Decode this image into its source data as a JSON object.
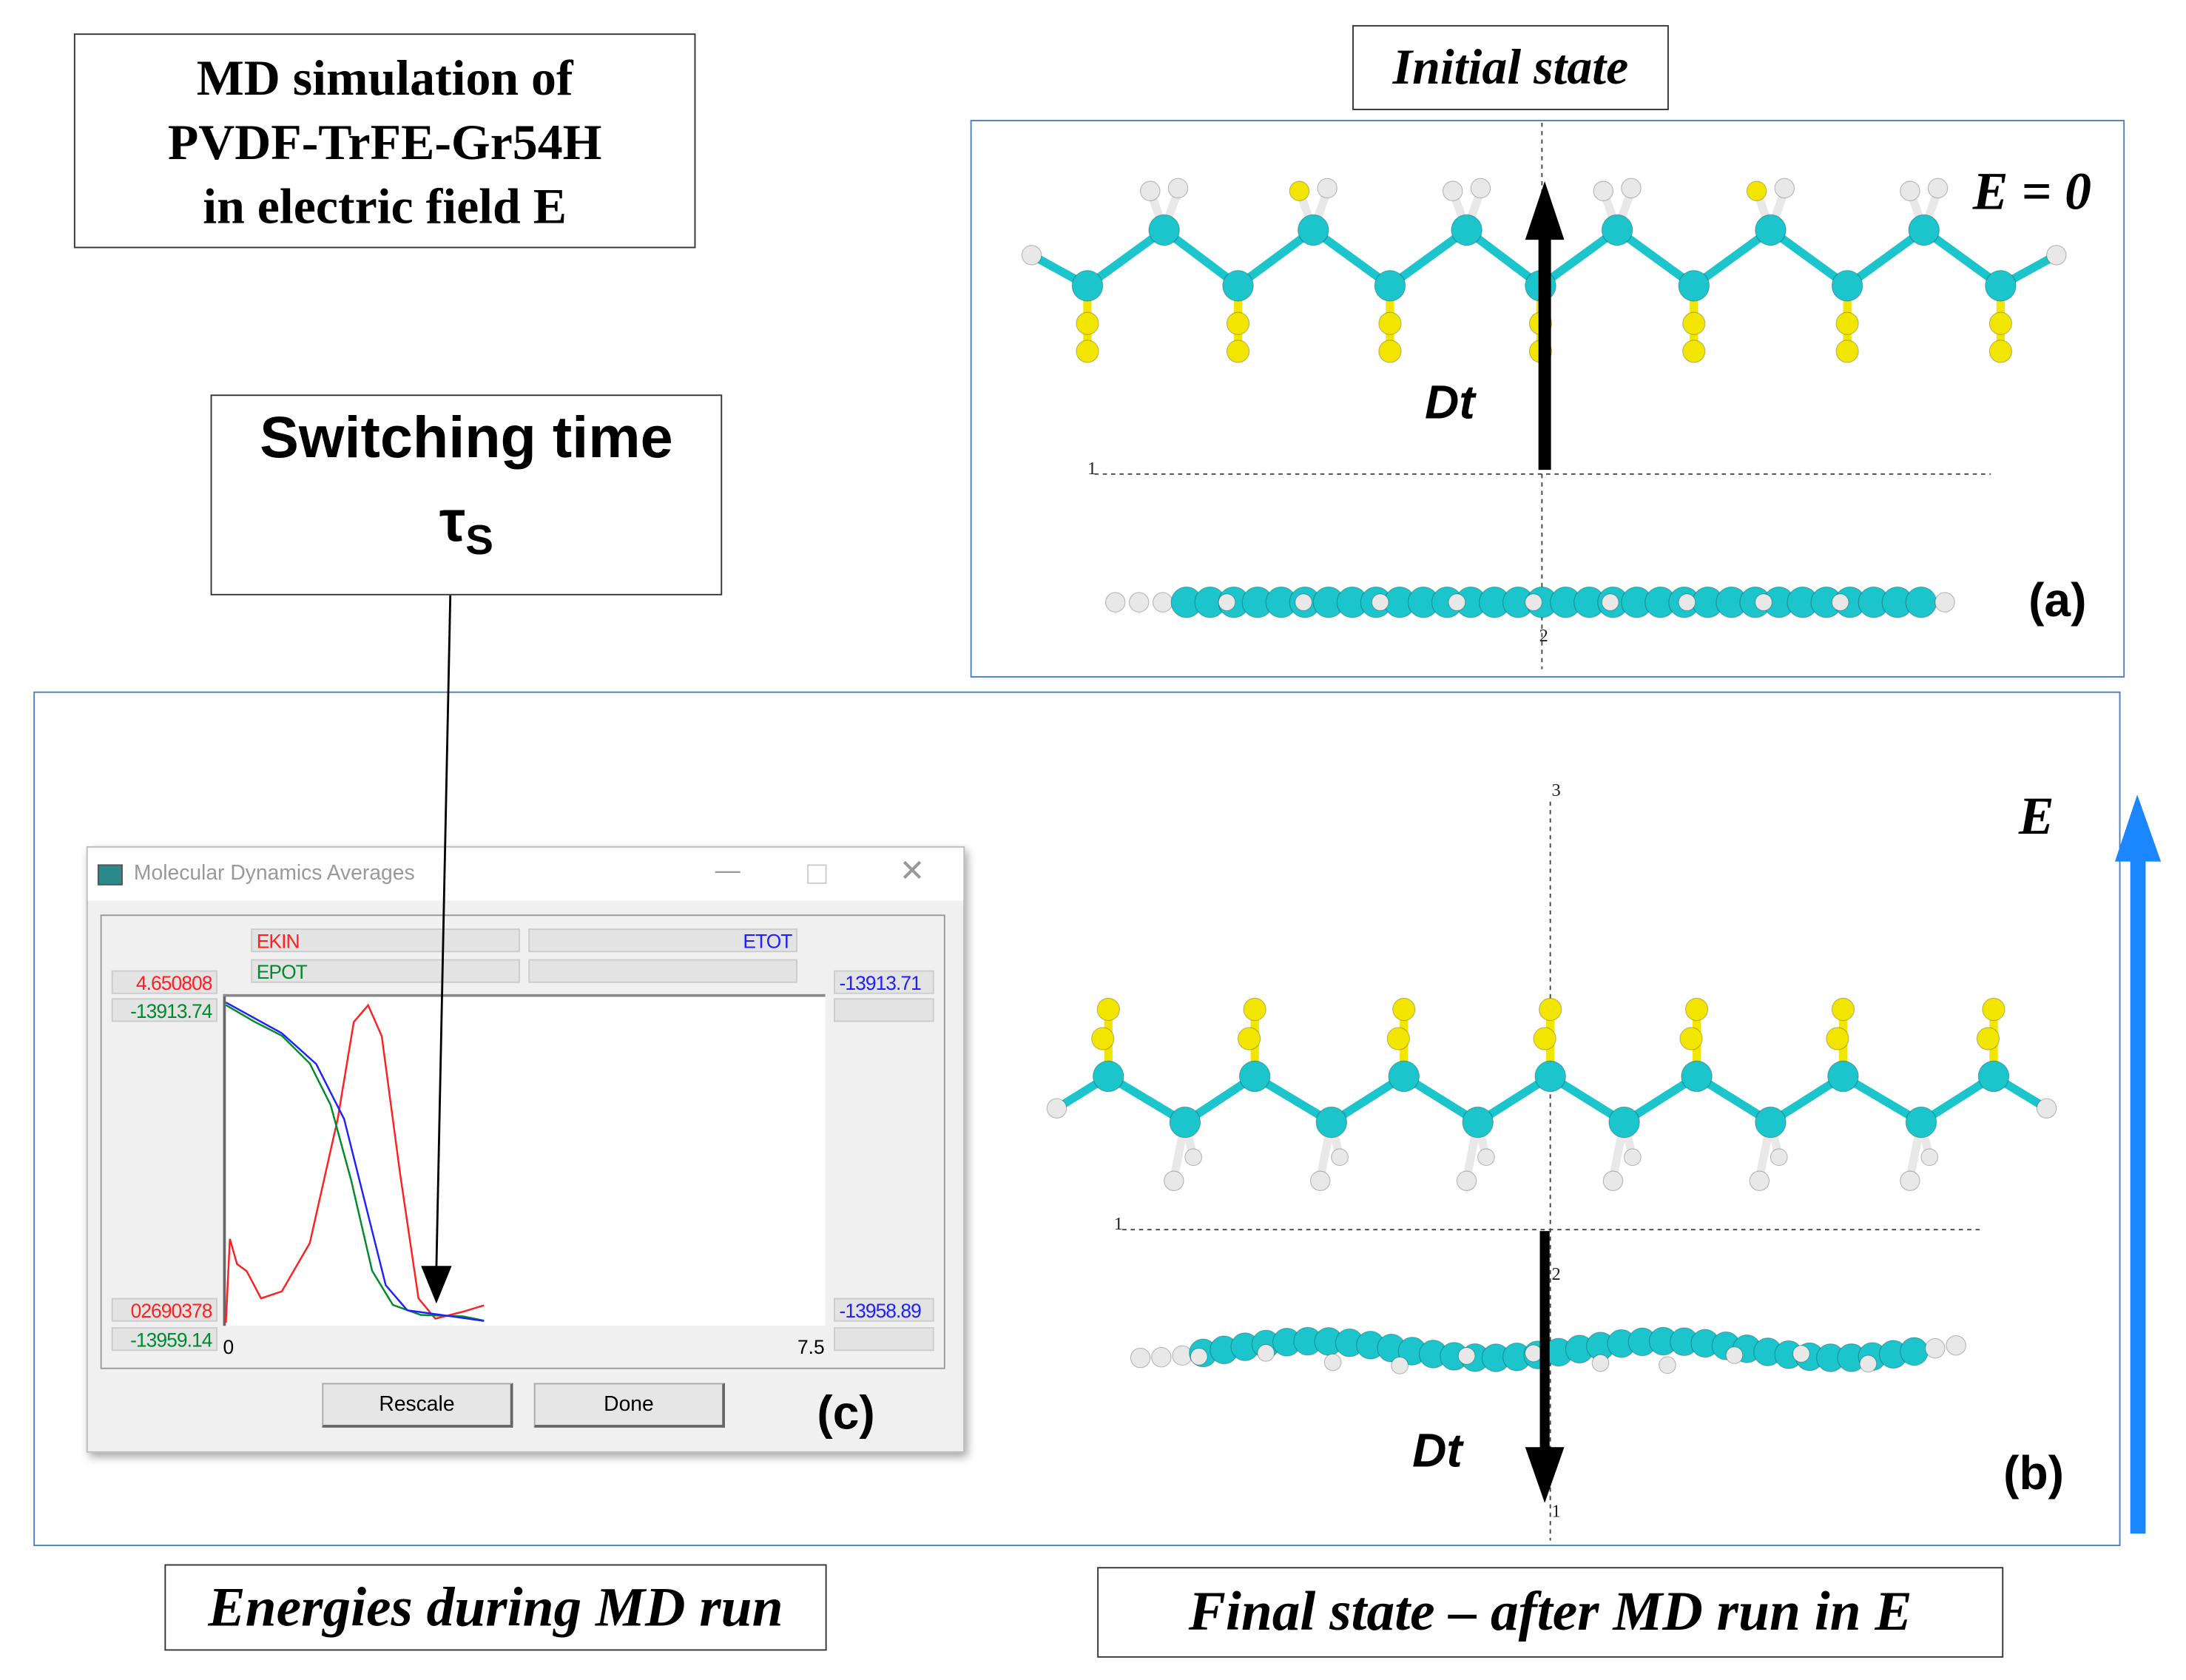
{
  "title_box": {
    "line1": "MD simulation of",
    "line2": "PVDF-TrFE-Gr54H",
    "line3": "in electric field E"
  },
  "initial_state": "Initial state",
  "switching": {
    "line1": "Switching time",
    "tau": "τ",
    "sub": "S"
  },
  "panel_a": {
    "field": "E = 0",
    "dipole": "Dt",
    "label": "(a)",
    "axis_labels": [
      "1",
      "2"
    ]
  },
  "panel_b": {
    "field": "E",
    "dipole": "Dt",
    "label": "(b)",
    "axis_labels": [
      "3",
      "1",
      "2",
      "1"
    ]
  },
  "dialog": {
    "title": "Molecular Dynamics Averages",
    "legend": {
      "ekin": "EKIN",
      "epot": "EPOT",
      "etot": "ETOT"
    },
    "left_max_ekin": "4.650808",
    "left_max_epot": "-13913.74",
    "left_min_ekin": "02690378",
    "left_min_epot": "-13959.14",
    "right_max_etot": "-13913.71",
    "right_min_etot": "-13958.89",
    "x_min": "0",
    "x_max": "7.5",
    "rescale": "Rescale",
    "done": "Done",
    "label": "(c)",
    "colors": {
      "ekin": "#ff2020",
      "epot": "#008a2e",
      "etot": "#2020ff"
    }
  },
  "energies_caption": "Energies during MD run",
  "final_caption": "Final state – after MD run in E",
  "chart_data": {
    "type": "line",
    "xlim": [
      0,
      7.5
    ],
    "series": [
      {
        "name": "EKIN",
        "ylim": [
          0.0269,
          4.650808
        ],
        "x": [
          0,
          0.05,
          0.14,
          0.26,
          0.44,
          0.7,
          1.05,
          1.4,
          1.6,
          1.78,
          1.95,
          2.18,
          2.41,
          2.62,
          2.97,
          3.23
        ],
        "y": [
          0.03,
          1.23,
          0.87,
          0.77,
          0.38,
          0.48,
          1.17,
          2.95,
          4.33,
          4.57,
          4.13,
          2.16,
          0.38,
          0.09,
          0.19,
          0.28
        ]
      },
      {
        "name": "EPOT",
        "ylim": [
          -13959.14,
          -13913.74
        ],
        "x": [
          0,
          0.35,
          0.7,
          1.05,
          1.31,
          1.57,
          1.83,
          2.09,
          2.44,
          2.97,
          3.23
        ],
        "y": [
          -13914.5,
          -13916.8,
          -13918.8,
          -13922.7,
          -13928.5,
          -13939.2,
          -13951.8,
          -13956.6,
          -13958.0,
          -13958.2,
          -13958.8
        ]
      },
      {
        "name": "ETOT",
        "ylim": [
          -13958.89,
          -13913.71
        ],
        "x": [
          0,
          0.7,
          1.13,
          1.48,
          1.74,
          2.0,
          2.27,
          2.79,
          3.23
        ],
        "y": [
          -13914.1,
          -13918.4,
          -13922.7,
          -13930.4,
          -13942.0,
          -13953.6,
          -13957.1,
          -13957.9,
          -13958.6
        ]
      }
    ]
  }
}
